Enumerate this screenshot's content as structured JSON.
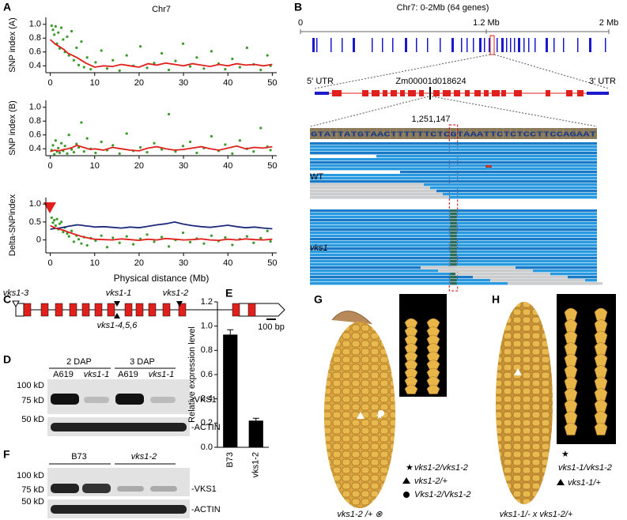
{
  "chart_data": [
    {
      "type": "scatter",
      "title": "Chr7",
      "y_label": "SNP index (A)",
      "xlim": [
        -1,
        51
      ],
      "xticks": [
        0,
        10,
        20,
        30,
        40,
        50
      ],
      "ylim": [
        0.3,
        1.1
      ],
      "yticks": [
        0.4,
        0.6,
        0.8,
        {
          "value": 1,
          "label": "1.0"
        }
      ],
      "series": [
        {
          "type": "scatter",
          "color": "#3a9b2a",
          "x": [
            0.3,
            0.6,
            0.9,
            1.2,
            1.5,
            1.8,
            2.1,
            2.5,
            2.9,
            3.3,
            3.8,
            4.2,
            4.8,
            5.3,
            5.9,
            6.4,
            7.0,
            7.6,
            8.3,
            9.1,
            10.2,
            11.5,
            12.8,
            14.1,
            15.6,
            17.2,
            18.7,
            20.3,
            21.8,
            23.4,
            25.1,
            26.7,
            28.2,
            29.9,
            31.5,
            33.0,
            34.6,
            36.3,
            37.9,
            39.4,
            41.0,
            42.7,
            44.3,
            45.8,
            47.4,
            48.9,
            49.6
          ],
          "values": [
            0.98,
            0.92,
            0.85,
            0.97,
            0.72,
            0.88,
            0.65,
            0.95,
            0.78,
            0.6,
            0.82,
            0.55,
            0.9,
            0.48,
            0.66,
            0.41,
            0.75,
            0.38,
            0.52,
            0.35,
            0.45,
            0.62,
            0.36,
            0.48,
            0.33,
            0.55,
            0.4,
            0.68,
            0.37,
            0.44,
            0.58,
            0.34,
            0.47,
            0.72,
            0.39,
            0.52,
            0.36,
            0.61,
            0.43,
            0.35,
            0.5,
            0.38,
            0.66,
            0.42,
            0.34,
            0.55,
            0.4
          ]
        },
        {
          "type": "line",
          "color": "#e0201c",
          "x": [
            0,
            1,
            2,
            3,
            4,
            5,
            6,
            7,
            8,
            9,
            10,
            12,
            14,
            16,
            18,
            20,
            22,
            24,
            26,
            28,
            30,
            32,
            34,
            36,
            38,
            40,
            42,
            44,
            46,
            48,
            50
          ],
          "values": [
            0.78,
            0.72,
            0.68,
            0.64,
            0.58,
            0.55,
            0.52,
            0.48,
            0.44,
            0.41,
            0.38,
            0.4,
            0.39,
            0.42,
            0.4,
            0.38,
            0.43,
            0.41,
            0.44,
            0.42,
            0.4,
            0.43,
            0.41,
            0.39,
            0.42,
            0.4,
            0.43,
            0.41,
            0.42,
            0.4,
            0.42
          ]
        }
      ]
    },
    {
      "type": "scatter",
      "y_label": "SNP index (B)",
      "xlim": [
        -1,
        51
      ],
      "xticks": [
        0,
        10,
        20,
        30,
        40,
        50
      ],
      "ylim": [
        0.3,
        1.1
      ],
      "yticks": [
        0.4,
        0.6,
        0.8,
        {
          "value": 1,
          "label": "1.0"
        }
      ],
      "series": [
        {
          "type": "scatter",
          "color": "#3a9b2a",
          "x": [
            0.3,
            0.6,
            0.9,
            1.2,
            1.5,
            1.8,
            2.1,
            2.5,
            2.9,
            3.3,
            3.8,
            4.2,
            4.8,
            5.3,
            5.9,
            6.4,
            7.0,
            7.6,
            8.3,
            9.1,
            10.2,
            11.5,
            12.8,
            14.1,
            15.6,
            17.2,
            18.7,
            20.3,
            21.8,
            23.4,
            25.1,
            26.7,
            28.2,
            29.9,
            31.5,
            33.0,
            34.6,
            36.3,
            37.9,
            39.4,
            41.0,
            42.7,
            44.3,
            45.8,
            47.4,
            48.9,
            49.6
          ],
          "values": [
            0.38,
            0.45,
            0.32,
            0.52,
            0.36,
            0.41,
            0.34,
            0.48,
            0.37,
            0.44,
            0.33,
            0.6,
            0.39,
            0.35,
            0.47,
            0.42,
            0.78,
            0.36,
            0.55,
            0.4,
            0.34,
            0.5,
            0.38,
            0.45,
            0.33,
            0.62,
            0.37,
            0.42,
            0.35,
            0.48,
            0.39,
            0.9,
            0.36,
            0.44,
            0.5,
            0.34,
            0.41,
            0.58,
            0.37,
            0.46,
            0.33,
            0.52,
            0.4,
            0.36,
            0.7,
            0.43,
            0.38
          ]
        },
        {
          "type": "line",
          "color": "#e0201c",
          "x": [
            0,
            1,
            2,
            3,
            4,
            5,
            6,
            7,
            8,
            9,
            10,
            12,
            14,
            16,
            18,
            20,
            22,
            24,
            26,
            28,
            30,
            32,
            34,
            36,
            38,
            40,
            42,
            44,
            46,
            48,
            50
          ],
          "values": [
            0.36,
            0.38,
            0.37,
            0.39,
            0.4,
            0.42,
            0.45,
            0.43,
            0.41,
            0.39,
            0.4,
            0.38,
            0.42,
            0.4,
            0.38,
            0.37,
            0.41,
            0.43,
            0.4,
            0.38,
            0.39,
            0.41,
            0.43,
            0.4,
            0.38,
            0.41,
            0.44,
            0.4,
            0.42,
            0.41,
            0.43
          ]
        }
      ]
    },
    {
      "type": "scatter",
      "y_label": "Delta-SNPindex",
      "x_label": "Physical distance (Mb)",
      "xlim": [
        -1,
        51
      ],
      "xticks": [
        0,
        10,
        20,
        30,
        40,
        50
      ],
      "ylim": [
        -0.36,
        1.18
      ],
      "yticks": [
        0,
        0.5,
        {
          "value": 1,
          "label": "1.0"
        }
      ],
      "series": [
        {
          "type": "scatter",
          "color": "#3a9b2a",
          "x": [
            0.3,
            0.6,
            0.9,
            1.2,
            1.5,
            1.8,
            2.1,
            2.5,
            2.9,
            3.3,
            3.8,
            4.2,
            4.8,
            5.3,
            5.9,
            6.4,
            7.0,
            7.6,
            8.3,
            9.1,
            10.2,
            11.5,
            12.8,
            14.1,
            15.6,
            17.2,
            18.7,
            20.3,
            21.8,
            23.4,
            25.1,
            26.7,
            28.2,
            29.9,
            31.5,
            33.0,
            34.6,
            36.3,
            37.9,
            39.4,
            41.0,
            42.7,
            44.3,
            45.8,
            47.4,
            48.9,
            49.6
          ],
          "values": [
            0.62,
            0.48,
            0.55,
            0.4,
            0.58,
            0.3,
            0.45,
            0.5,
            0.22,
            0.35,
            0.18,
            0.1,
            0.25,
            -0.05,
            0.12,
            0.02,
            -0.1,
            0.08,
            -0.15,
            0.05,
            -0.02,
            0.12,
            -0.2,
            0.06,
            -0.08,
            0.1,
            -0.12,
            0.03,
            0.15,
            -0.05,
            0.08,
            -0.18,
            0.0,
            0.2,
            -0.06,
            0.04,
            -0.1,
            0.12,
            -0.03,
            0.07,
            -0.14,
            0.02,
            0.1,
            -0.08,
            0.05,
            0.25,
            -0.04
          ]
        },
        {
          "type": "line",
          "color": "#1c2a7a",
          "x": [
            0,
            1,
            2,
            3,
            4,
            5,
            6,
            7,
            8,
            9,
            10,
            12,
            14,
            16,
            18,
            20,
            22,
            24,
            26,
            28,
            30,
            32,
            34,
            36,
            38,
            40,
            42,
            44,
            46,
            48,
            50
          ],
          "values": [
            0.3,
            0.32,
            0.33,
            0.35,
            0.38,
            0.4,
            0.42,
            0.41,
            0.39,
            0.38,
            0.36,
            0.37,
            0.35,
            0.33,
            0.36,
            0.34,
            0.38,
            0.42,
            0.45,
            0.5,
            0.44,
            0.4,
            0.37,
            0.35,
            0.38,
            0.41,
            0.37,
            0.34,
            0.36,
            0.33,
            0.31
          ]
        },
        {
          "type": "line",
          "color": "#e0201c",
          "x": [
            0,
            1,
            2,
            3,
            4,
            5,
            6,
            7,
            8,
            9,
            10,
            12,
            14,
            16,
            18,
            20,
            22,
            24,
            26,
            28,
            30,
            32,
            34,
            36,
            38,
            40,
            42,
            44,
            46,
            48,
            50
          ],
          "values": [
            0.4,
            0.34,
            0.3,
            0.27,
            0.22,
            0.18,
            0.14,
            0.1,
            0.07,
            0.04,
            0.02,
            0.01,
            0.0,
            0.03,
            0.01,
            -0.01,
            0.02,
            0.0,
            0.04,
            0.02,
            0.0,
            0.01,
            0.03,
            0.0,
            -0.01,
            0.02,
            0.0,
            0.03,
            0.01,
            0.0,
            0.02
          ]
        }
      ]
    },
    {
      "type": "bar",
      "y_label": "Relative expression level",
      "color": "#000000",
      "categories": [
        "B73",
        "vks1-2"
      ],
      "values": [
        0.93,
        0.22
      ],
      "errors": [
        0.04,
        0.02
      ],
      "ylim": [
        0,
        1.2
      ],
      "yticks": [
        {
          "value": 0,
          "label": "0.0"
        },
        0.2,
        0.4,
        0.6,
        0.8,
        {
          "value": 1,
          "label": "1.0"
        },
        1.2
      ]
    }
  ],
  "panel_labels": [
    "A",
    "B",
    "C",
    "D",
    "E",
    "F",
    "G",
    "H"
  ],
  "gene_view": {
    "title": "Chr7: 0-2Mb (64 genes)",
    "scale_labels": [
      "0",
      "1.2 Mb",
      "2 Mb"
    ],
    "utr5": "5' UTR",
    "gene_id": "Zm00001d018624",
    "utr3": "3' UTR",
    "position": "1,251,147",
    "sequence": "GTATTATGTAACTTTTTTCTCGTAAATTCTCTCCTTCCAGAAT",
    "tracks": [
      "WT",
      "vks1"
    ]
  },
  "gene_structure": {
    "alleles": [
      "vks1-3",
      "vks1-1",
      "vks1-2",
      "vks1-4,5,6"
    ],
    "scale": "100 bp"
  },
  "blot_d": {
    "groups": [
      "2 DAP",
      "3 DAP"
    ],
    "lanes": [
      "A619",
      "vks1-1",
      "A619",
      "vks1-1"
    ],
    "markers": [
      "100 kD",
      "75 kD",
      "50 kD"
    ],
    "bands": [
      "-VKS1",
      "-ACTIN"
    ]
  },
  "blot_f": {
    "groups": [
      "B73",
      "vks1-2"
    ],
    "markers": [
      "100 kD",
      "75 kD",
      "50 kD"
    ],
    "bands": [
      "-VKS1",
      "-ACTIN"
    ]
  },
  "ear_g": {
    "legend": [
      "vks1-2/vks1-2",
      "vks1-2/+",
      "Vks1-2/Vks1-2"
    ],
    "caption": "vks1-2 /+ ⊗"
  },
  "ear_h": {
    "legend": [
      "vks1-1/vks1-2",
      "vks1-1/+"
    ],
    "caption": "vks1-1/- x vks1-2/+"
  }
}
